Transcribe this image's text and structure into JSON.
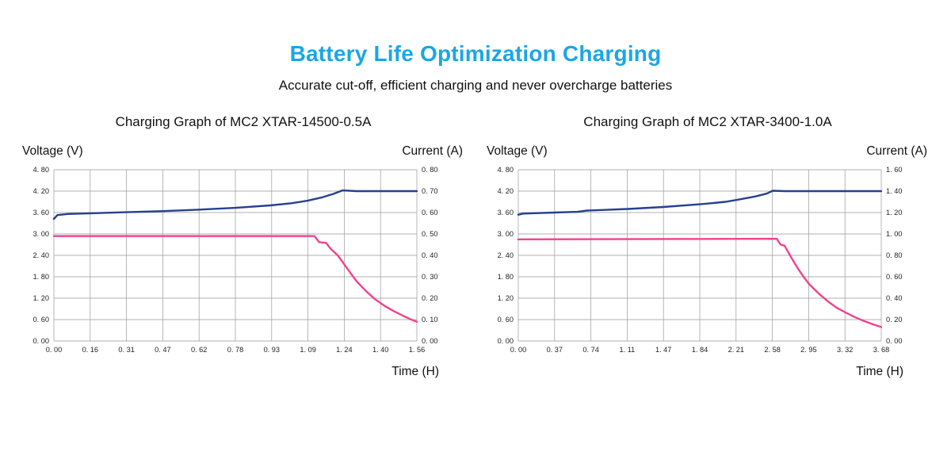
{
  "title": "Battery Life Optimization Charging",
  "subtitle": "Accurate cut-off, efficient charging and never overcharge batteries",
  "colors": {
    "title": "#1ba6e4",
    "voltage_line": "#26418e",
    "current_line": "#f2418f",
    "grid": "#999999"
  },
  "chart_data": [
    {
      "type": "line",
      "title": "Charging Graph of MC2 XTAR-14500-0.5A",
      "xlabel": "Time (H)",
      "ylabel_left": "Voltage (V)",
      "ylabel_right": "Current (A)",
      "x_range": [
        0,
        1.56
      ],
      "x_ticks": [
        "0. 00",
        "0. 16",
        "0. 31",
        "0. 47",
        "0. 62",
        "0. 78",
        "0. 93",
        "1. 09",
        "1. 24",
        "1. 40",
        "1. 56"
      ],
      "y_left_range": [
        0,
        4.8
      ],
      "y_left_ticks": [
        "4. 80",
        "4. 20",
        "3. 60",
        "3. 00",
        "2. 40",
        "1. 80",
        "1. 20",
        "0. 60",
        "0. 00"
      ],
      "y_right_range": [
        0,
        0.8
      ],
      "y_right_ticks": [
        "0. 80",
        "0. 70",
        "0. 60",
        "0. 50",
        "0. 40",
        "0. 30",
        "0. 20",
        "0. 10",
        "0. 00"
      ],
      "grid": true,
      "series": [
        {
          "name": "voltage",
          "axis": "left",
          "color_key": "voltage_line",
          "points": [
            [
              0,
              3.42
            ],
            [
              0.015,
              3.53
            ],
            [
              0.06,
              3.56
            ],
            [
              0.16,
              3.58
            ],
            [
              0.31,
              3.61
            ],
            [
              0.47,
              3.64
            ],
            [
              0.62,
              3.68
            ],
            [
              0.78,
              3.73
            ],
            [
              0.93,
              3.8
            ],
            [
              1.02,
              3.86
            ],
            [
              1.09,
              3.93
            ],
            [
              1.15,
              4.02
            ],
            [
              1.2,
              4.12
            ],
            [
              1.24,
              4.22
            ],
            [
              1.3,
              4.2
            ],
            [
              1.56,
              4.2
            ]
          ]
        },
        {
          "name": "current",
          "axis": "right",
          "color_key": "current_line",
          "points": [
            [
              0,
              0.49
            ],
            [
              1.12,
              0.49
            ],
            [
              1.14,
              0.462
            ],
            [
              1.17,
              0.458
            ],
            [
              1.19,
              0.43
            ],
            [
              1.22,
              0.4
            ],
            [
              1.26,
              0.34
            ],
            [
              1.3,
              0.28
            ],
            [
              1.34,
              0.235
            ],
            [
              1.38,
              0.195
            ],
            [
              1.42,
              0.165
            ],
            [
              1.46,
              0.14
            ],
            [
              1.5,
              0.118
            ],
            [
              1.53,
              0.103
            ],
            [
              1.56,
              0.09
            ]
          ]
        }
      ]
    },
    {
      "type": "line",
      "title": "Charging Graph of MC2 XTAR-3400-1.0A",
      "xlabel": "Time (H)",
      "ylabel_left": "Voltage (V)",
      "ylabel_right": "Current (A)",
      "x_range": [
        0,
        3.68
      ],
      "x_ticks": [
        "0. 00",
        "0. 37",
        "0. 74",
        "1. 11",
        "1. 47",
        "1. 84",
        "2. 21",
        "2. 58",
        "2. 95",
        "3. 32",
        "3. 68"
      ],
      "y_left_range": [
        0,
        4.8
      ],
      "y_left_ticks": [
        "4. 80",
        "4. 20",
        "3. 60",
        "3. 00",
        "2. 40",
        "1. 80",
        "1. 20",
        "0. 60",
        "0. 00"
      ],
      "y_right_range": [
        0,
        1.6
      ],
      "y_right_ticks": [
        "1. 60",
        "1. 40",
        "1. 20",
        "1. 00",
        "0. 80",
        "0. 60",
        "0. 40",
        "0. 20",
        "0. 00"
      ],
      "grid": true,
      "series": [
        {
          "name": "voltage",
          "axis": "left",
          "color_key": "voltage_line",
          "points": [
            [
              0,
              3.54
            ],
            [
              0.05,
              3.57
            ],
            [
              0.37,
              3.6
            ],
            [
              0.6,
              3.62
            ],
            [
              0.7,
              3.655
            ],
            [
              0.74,
              3.66
            ],
            [
              1.11,
              3.7
            ],
            [
              1.47,
              3.755
            ],
            [
              1.84,
              3.83
            ],
            [
              2.1,
              3.9
            ],
            [
              2.21,
              3.95
            ],
            [
              2.4,
              4.05
            ],
            [
              2.52,
              4.13
            ],
            [
              2.58,
              4.21
            ],
            [
              2.7,
              4.2
            ],
            [
              3.68,
              4.2
            ]
          ]
        },
        {
          "name": "current",
          "axis": "right",
          "color_key": "current_line",
          "points": [
            [
              0,
              0.95
            ],
            [
              2.62,
              0.955
            ],
            [
              2.66,
              0.9
            ],
            [
              2.7,
              0.89
            ],
            [
              2.73,
              0.84
            ],
            [
              2.78,
              0.76
            ],
            [
              2.84,
              0.67
            ],
            [
              2.9,
              0.59
            ],
            [
              2.95,
              0.53
            ],
            [
              3.05,
              0.44
            ],
            [
              3.14,
              0.37
            ],
            [
              3.23,
              0.31
            ],
            [
              3.32,
              0.265
            ],
            [
              3.42,
              0.22
            ],
            [
              3.51,
              0.185
            ],
            [
              3.6,
              0.155
            ],
            [
              3.68,
              0.13
            ]
          ]
        }
      ]
    }
  ]
}
